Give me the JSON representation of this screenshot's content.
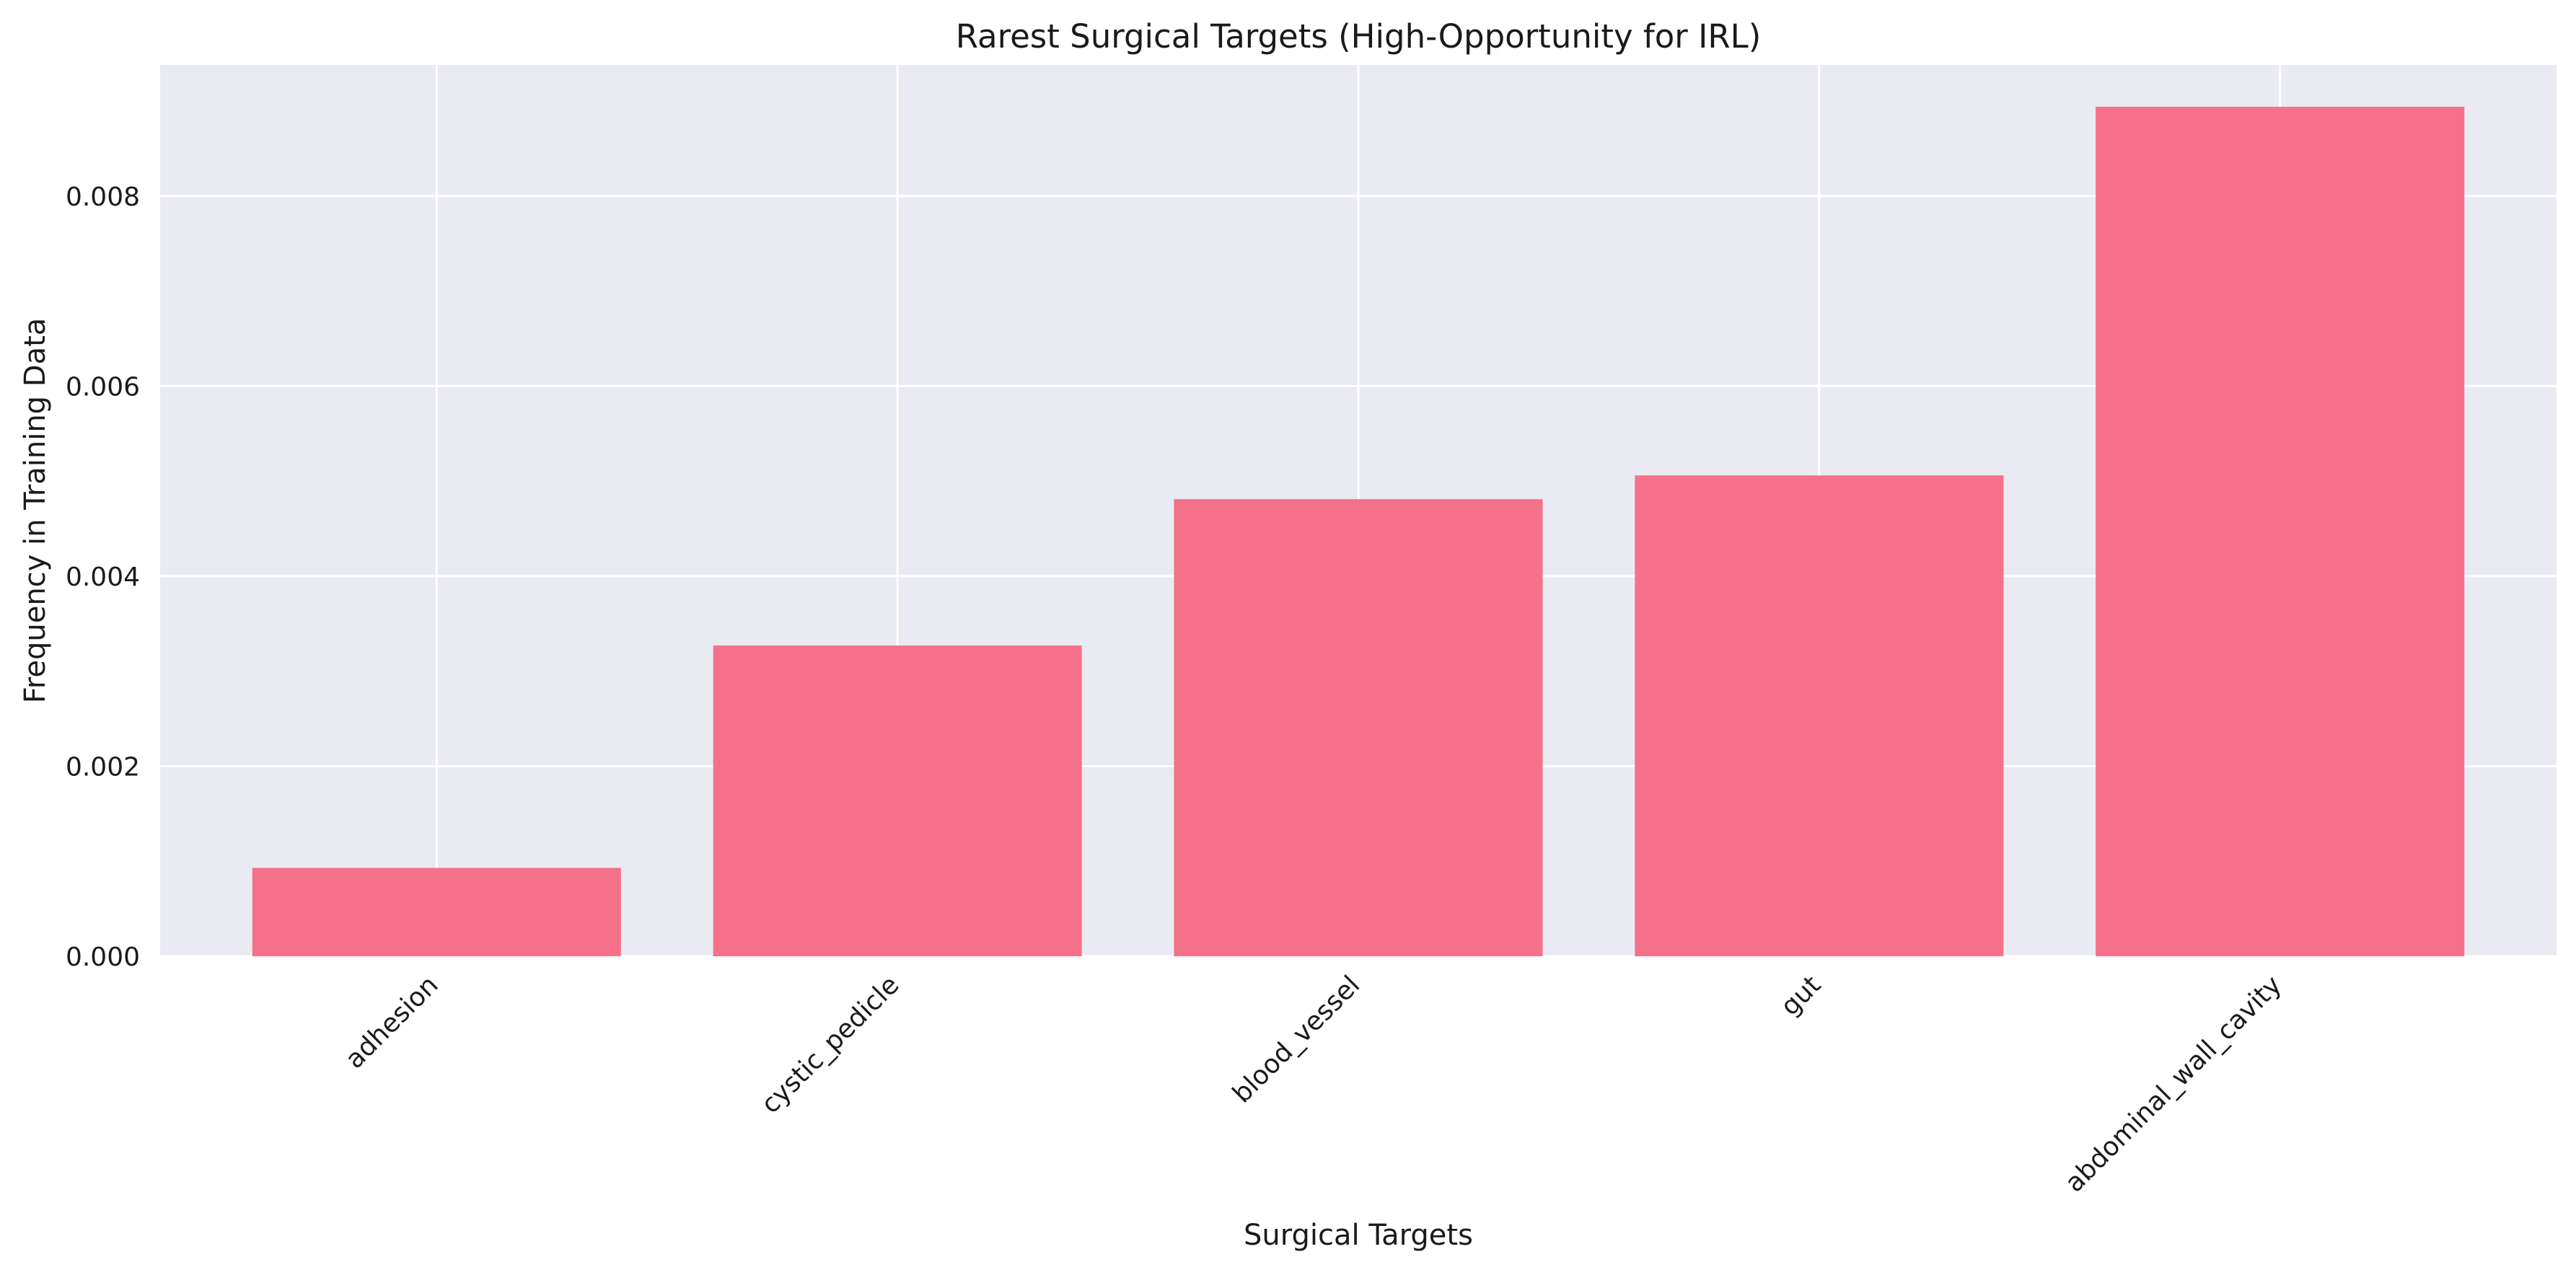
{
  "chart_data": {
    "type": "bar",
    "title": "Rarest Surgical Targets (High-Opportunity for IRL)",
    "xlabel": "Surgical Targets",
    "ylabel": "Frequency in Training Data",
    "categories": [
      "adhesion",
      "cystic_pedicle",
      "blood_vessel",
      "gut",
      "abdominal_wall_cavity"
    ],
    "values": [
      0.00093,
      0.00327,
      0.00481,
      0.00506,
      0.00894
    ],
    "ylim": [
      0,
      0.00938
    ],
    "yticks": [
      0.0,
      0.002,
      0.004,
      0.006,
      0.008
    ],
    "ytick_labels": [
      "0.000",
      "0.002",
      "0.004",
      "0.006",
      "0.008"
    ],
    "grid": true,
    "legend": "none",
    "colors": {
      "bar": "#f5718a",
      "plot_background": "#eaeaf2",
      "grid": "#ffffff",
      "text": "#1a1a1a"
    }
  }
}
